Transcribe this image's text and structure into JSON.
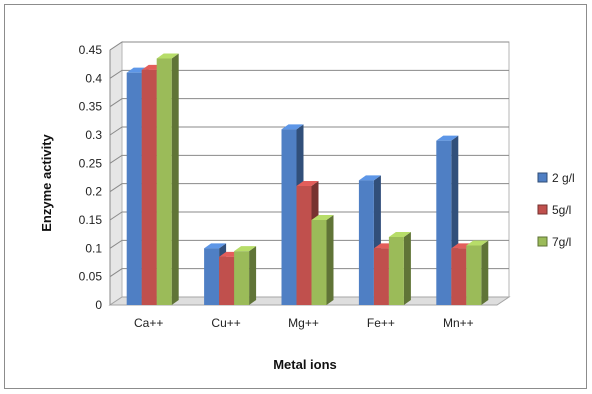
{
  "chart_data": {
    "type": "bar",
    "title": "",
    "xlabel": "Metal ions",
    "ylabel": "Enzyme activity",
    "categories": [
      "Ca++",
      "Cu++",
      "Mg++",
      "Fe++",
      "Mn++"
    ],
    "ylim": [
      0,
      0.45
    ],
    "yticks": [
      "0",
      "0.05",
      "0.1",
      "0.15",
      "0.2",
      "0.25",
      "0.3",
      "0.35",
      "0.4",
      "0.45"
    ],
    "grid": true,
    "three_d": true,
    "legend_position": "right",
    "series": [
      {
        "name": "2 g/l",
        "color": "#4f7fc4",
        "values": [
          0.41,
          0.1,
          0.31,
          0.22,
          0.29
        ]
      },
      {
        "name": "5g/l",
        "color": "#c0504d",
        "values": [
          0.415,
          0.085,
          0.21,
          0.1,
          0.1
        ]
      },
      {
        "name": "7g/l",
        "color": "#9bbb59",
        "values": [
          0.435,
          0.095,
          0.15,
          0.12,
          0.105
        ]
      }
    ]
  }
}
